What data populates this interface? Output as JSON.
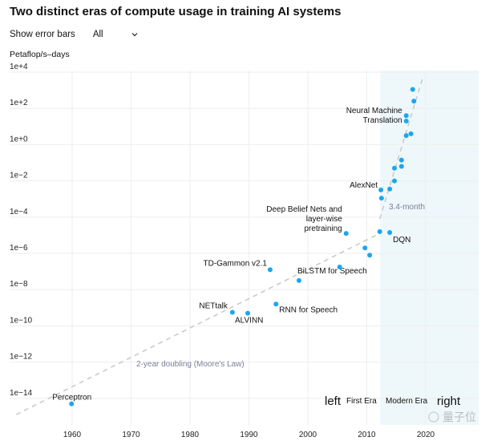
{
  "title": "Two distinct eras of compute usage in training AI systems",
  "controls": {
    "error_bars_label": "Show error bars",
    "error_bars_value": "All"
  },
  "colors": {
    "point": "#1aa7ec",
    "modern_era_shade": "#eef7fa",
    "trend": "#c8c8c8",
    "grid": "#eeeeee"
  },
  "watermark": "量子位",
  "chart_data": {
    "type": "scatter",
    "title": "Two distinct eras of compute usage in training AI systems",
    "ylabel": "Petaflop/s–days",
    "xlabel": "",
    "y_scale": "log",
    "xlim": [
      1950,
      2022
    ],
    "ylim_log10": [
      -15.5,
      4
    ],
    "x_ticks": [
      1960,
      1970,
      1980,
      1990,
      2000,
      2010,
      2020
    ],
    "x_tick_labels": [
      "1960",
      "1970",
      "1980",
      "1990",
      "2000",
      "2010",
      "2020"
    ],
    "y_ticks_log10": [
      4,
      2,
      0,
      -2,
      -4,
      -6,
      -8,
      -10,
      -12,
      -14
    ],
    "y_tick_labels": [
      "1e+4",
      "1e+2",
      "1e+0",
      "1e−2",
      "1e−4",
      "1e−6",
      "1e−8",
      "1e−10",
      "1e−12",
      "1e−14"
    ],
    "grid": true,
    "modern_era_start": 2012.3,
    "points": [
      {
        "x": 1959.9,
        "log10_y": -14.3,
        "label": "Perceptron"
      },
      {
        "x": 1987.2,
        "log10_y": -9.25,
        "label": "NETtalk"
      },
      {
        "x": 1989.8,
        "log10_y": -9.3,
        "label": "ALVINN"
      },
      {
        "x": 1993.6,
        "log10_y": -6.9,
        "label": "TD-Gammon v2.1"
      },
      {
        "x": 1994.6,
        "log10_y": -8.8,
        "label": "RNN for Speech"
      },
      {
        "x": 1998.5,
        "log10_y": -7.5,
        "label": "BiLSTM for Speech"
      },
      {
        "x": 2005.4,
        "log10_y": -6.75,
        "label": ""
      },
      {
        "x": 2006.5,
        "log10_y": -4.9,
        "label": "Deep Belief Nets and|layer-wise|pretraining"
      },
      {
        "x": 2009.7,
        "log10_y": -5.7,
        "label": ""
      },
      {
        "x": 2010.5,
        "log10_y": -6.1,
        "label": ""
      },
      {
        "x": 2012.2,
        "log10_y": -4.8,
        "label": ""
      },
      {
        "x": 2013.9,
        "log10_y": -4.85,
        "label": "DQN"
      },
      {
        "x": 2012.4,
        "log10_y": -2.5,
        "label": "AlexNet"
      },
      {
        "x": 2012.5,
        "log10_y": -2.95,
        "label": ""
      },
      {
        "x": 2013.9,
        "log10_y": -2.45,
        "label": ""
      },
      {
        "x": 2014.7,
        "log10_y": -2.0,
        "label": ""
      },
      {
        "x": 2014.7,
        "log10_y": -1.3,
        "label": ""
      },
      {
        "x": 2015.9,
        "log10_y": -1.2,
        "label": ""
      },
      {
        "x": 2015.9,
        "log10_y": -0.85,
        "label": ""
      },
      {
        "x": 2016.7,
        "log10_y": 0.5,
        "label": ""
      },
      {
        "x": 2017.5,
        "log10_y": 0.6,
        "label": ""
      },
      {
        "x": 2016.7,
        "log10_y": 1.3,
        "label": "Neural Machine|Translation"
      },
      {
        "x": 2016.7,
        "log10_y": 1.6,
        "label": ""
      },
      {
        "x": 2018.0,
        "log10_y": 2.4,
        "label": ""
      },
      {
        "x": 2017.8,
        "log10_y": 3.05,
        "label": ""
      }
    ],
    "trend_lines": [
      {
        "label": "2-year doubling (Moore's Law)",
        "from": [
          1950.5,
          -14.9
        ],
        "to": [
          2012.2,
          -4.9
        ]
      },
      {
        "label": "3.4-month",
        "from": [
          2012.2,
          -4.1
        ],
        "to": [
          2019.6,
          3.8
        ]
      }
    ],
    "annotations": {
      "left": "left",
      "first_era": "First Era",
      "modern_era": "Modern Era",
      "right": "right"
    }
  }
}
